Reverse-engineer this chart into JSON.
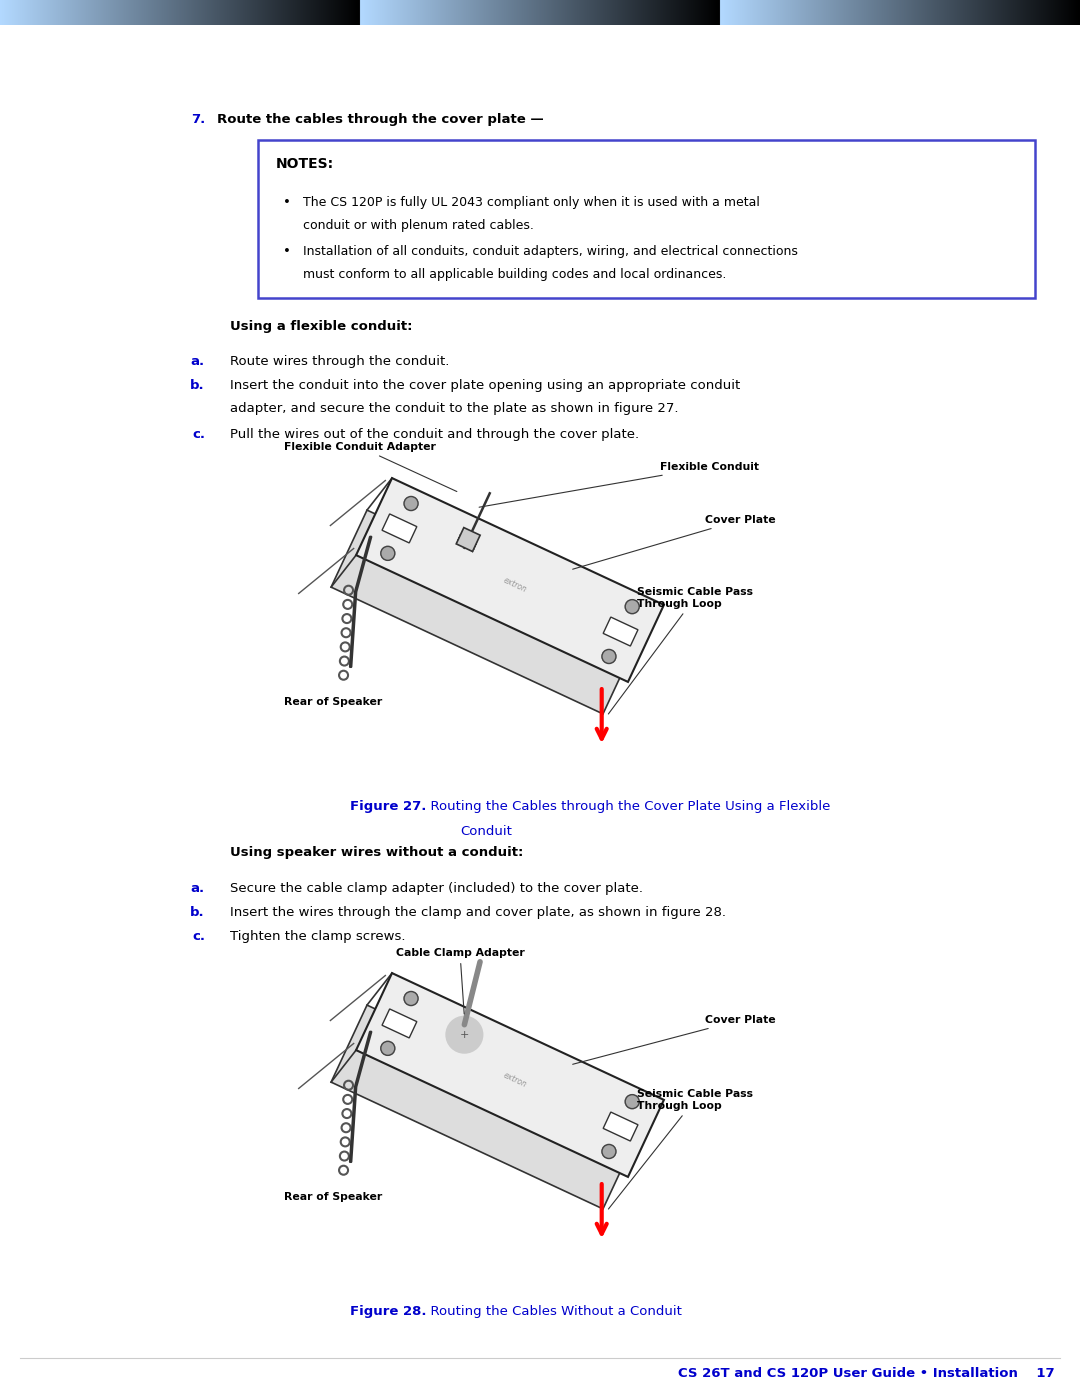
{
  "page_width": 10.8,
  "page_height": 13.97,
  "bg_color": "#ffffff",
  "blue_color": "#0000cc",
  "black": "#000000",
  "note_border_color": "#4444cc",
  "step7_label": "7.",
  "step7_text": "Route the cables through the cover plate —",
  "notes_title": "NOTES:",
  "note1_line1": "The CS 120P is fully UL 2043 compliant only when it is used with a metal",
  "note1_line2": "conduit or with plenum rated cables.",
  "note2_line1": "Installation of all conduits, conduit adapters, wiring, and electrical connections",
  "note2_line2": "must conform to all applicable building codes and local ordinances.",
  "flexible_conduit_header": "Using a flexible conduit:",
  "step_a1": "Route wires through the conduit.",
  "step_b1_l1": "Insert the conduit into the cover plate opening using an appropriate conduit",
  "step_b1_l2": "adapter, and secure the conduit to the plate as shown in figure 27.",
  "step_c1": "Pull the wires out of the conduit and through the cover plate.",
  "fig27_bold": "Figure 27.",
  "fig27_rest": "   Routing the Cables through the Cover Plate Using a Flexible",
  "fig27_rest2": "           Conduit",
  "speaker_header": "Using speaker wires without a conduit:",
  "step_a2": "Secure the cable clamp adapter (included) to the cover plate.",
  "step_b2": "Insert the wires through the clamp and cover plate, as shown in figure 28.",
  "step_c2": "Tighten the clamp screws.",
  "fig28_bold": "Figure 28.",
  "fig28_rest": "   Routing the Cables Without a Conduit",
  "footer": "CS 26T and CS 120P User Guide • Installation    17",
  "lbl_flex_adapter": "Flexible Conduit Adapter",
  "lbl_flex_conduit": "Flexible Conduit",
  "lbl_cover_plate": "Cover Plate",
  "lbl_seismic": "Seismic Cable Pass\nThrough Loop",
  "lbl_rear_speaker": "Rear of Speaker",
  "lbl_cable_clamp": "Cable Clamp Adapter"
}
